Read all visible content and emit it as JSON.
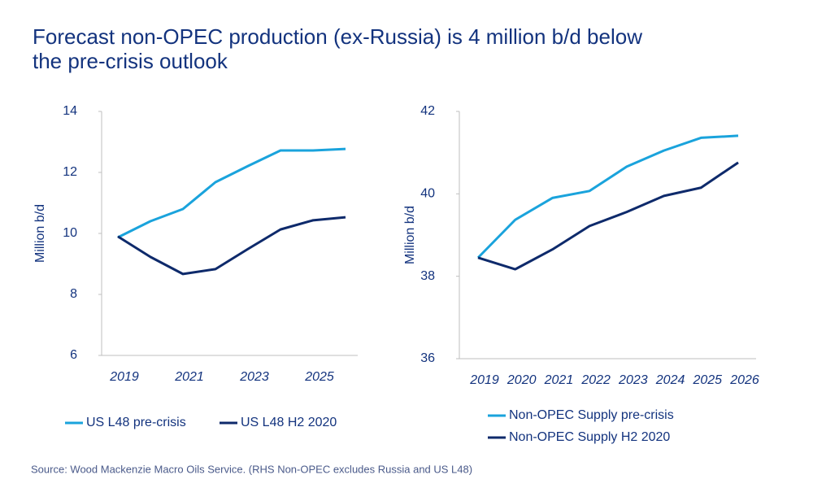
{
  "title": "Forecast non-OPEC production (ex-Russia) is 4 million b/d below the pre-crisis outlook",
  "source": "Source: Wood Mackenzie Macro Oils Service. (RHS Non-OPEC excludes Russia and US L48)",
  "chart_data": [
    {
      "type": "line",
      "y_label": "Million b/d",
      "categories": [
        "2019",
        null,
        "2021",
        null,
        "2023",
        null,
        "2025",
        null
      ],
      "series": [
        {
          "name": "US L48 pre-crisis",
          "color": "#1aa3dc",
          "values": [
            9.87,
            10.4,
            10.8,
            11.68,
            12.21,
            12.72,
            12.72,
            12.77
          ]
        },
        {
          "name": "US L48 H2 2020",
          "color": "#0e2a6b",
          "values": [
            9.9,
            9.23,
            8.67,
            8.83,
            9.49,
            10.13,
            10.43,
            10.53
          ]
        }
      ],
      "ylim": [
        6,
        14
      ],
      "yticks": [
        6,
        8,
        10,
        12,
        14
      ],
      "grid": false,
      "legend": "bottom"
    },
    {
      "type": "line",
      "y_label": "Million b/d",
      "categories": [
        "2019",
        "2020",
        "2021",
        "2022",
        "2023",
        "2024",
        "2025",
        "2026"
      ],
      "series": [
        {
          "name": "Non-OPEC Supply pre-crisis",
          "color": "#1aa3dc",
          "values": [
            38.45,
            39.37,
            39.9,
            40.07,
            40.66,
            41.05,
            41.36,
            41.41
          ]
        },
        {
          "name": "Non-OPEC Supply H2 2020",
          "color": "#0e2a6b",
          "values": [
            38.45,
            38.17,
            38.65,
            39.22,
            39.56,
            39.95,
            40.15,
            40.76
          ]
        }
      ],
      "ylim": [
        36,
        42
      ],
      "yticks": [
        36,
        38,
        40,
        42
      ],
      "grid": false,
      "legend": "bottom"
    }
  ]
}
